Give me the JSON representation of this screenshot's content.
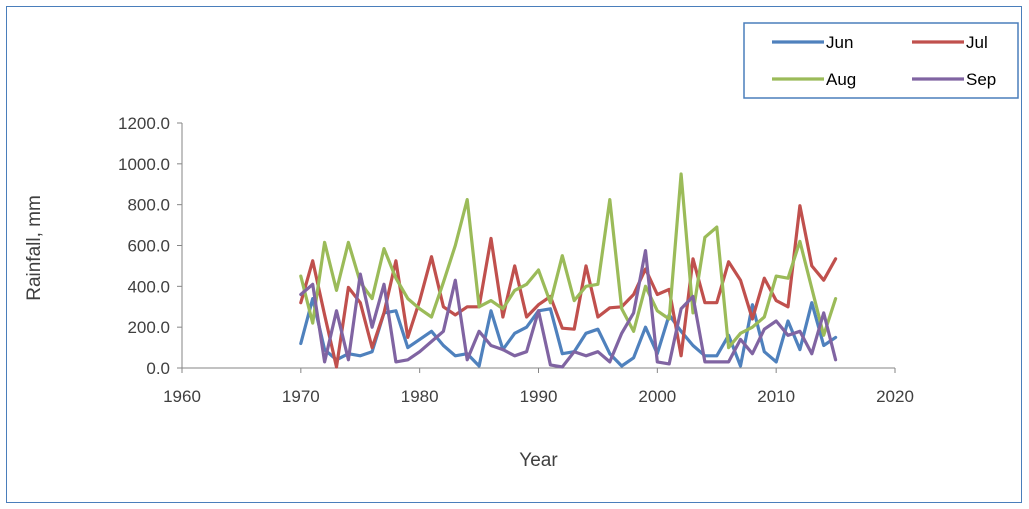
{
  "chart_data": {
    "type": "line",
    "title": "",
    "xlabel": "Year",
    "ylabel": "Rainfall, mm",
    "xlim": [
      1960,
      2020
    ],
    "ylim": [
      0,
      1200
    ],
    "x_ticks": [
      "1960",
      "1970",
      "1980",
      "1990",
      "2000",
      "2010",
      "2020"
    ],
    "y_ticks": [
      "0.0",
      "200.0",
      "400.0",
      "600.0",
      "800.0",
      "1000.0",
      "1200.0"
    ],
    "grid": false,
    "legend_position": "top-right",
    "x": [
      1970,
      1971,
      1972,
      1973,
      1974,
      1975,
      1976,
      1977,
      1978,
      1979,
      1980,
      1981,
      1982,
      1983,
      1984,
      1985,
      1986,
      1987,
      1988,
      1989,
      1990,
      1991,
      1992,
      1993,
      1994,
      1995,
      1996,
      1997,
      1998,
      1999,
      2000,
      2001,
      2002,
      2003,
      2004,
      2005,
      2006,
      2007,
      2008,
      2009,
      2010,
      2011,
      2012,
      2013,
      2014,
      2015
    ],
    "series": [
      {
        "name": "Jun",
        "color": "#4f81bd",
        "values": [
          120,
          340,
          90,
          40,
          70,
          60,
          80,
          270,
          280,
          100,
          140,
          180,
          110,
          60,
          70,
          10,
          280,
          90,
          170,
          200,
          280,
          290,
          70,
          80,
          170,
          190,
          70,
          10,
          50,
          200,
          70,
          260,
          180,
          110,
          60,
          60,
          160,
          10,
          310,
          80,
          30,
          230,
          90,
          320,
          110,
          150
        ]
      },
      {
        "name": "Jul",
        "color": "#c0504d",
        "values": [
          320,
          525,
          260,
          5,
          395,
          320,
          100,
          270,
          525,
          150,
          330,
          545,
          300,
          260,
          300,
          300,
          635,
          250,
          500,
          250,
          310,
          350,
          195,
          190,
          500,
          250,
          295,
          300,
          360,
          485,
          360,
          385,
          60,
          535,
          320,
          320,
          520,
          430,
          240,
          440,
          330,
          300,
          795,
          500,
          430,
          535
        ]
      },
      {
        "name": "Aug",
        "color": "#9bbb59",
        "values": [
          450,
          220,
          615,
          380,
          615,
          420,
          340,
          585,
          440,
          340,
          290,
          250,
          420,
          600,
          825,
          300,
          330,
          290,
          380,
          410,
          480,
          320,
          550,
          330,
          400,
          410,
          825,
          290,
          180,
          400,
          280,
          240,
          950,
          270,
          640,
          690,
          100,
          170,
          200,
          250,
          450,
          440,
          620,
          390,
          160,
          340
        ]
      },
      {
        "name": "Sep",
        "color": "#8064a2",
        "values": [
          360,
          410,
          30,
          280,
          40,
          460,
          200,
          410,
          30,
          40,
          80,
          130,
          180,
          430,
          40,
          180,
          110,
          90,
          60,
          80,
          280,
          15,
          5,
          80,
          60,
          80,
          30,
          170,
          270,
          575,
          30,
          20,
          290,
          350,
          30,
          30,
          30,
          140,
          70,
          190,
          230,
          160,
          180,
          70,
          270,
          40
        ]
      }
    ]
  }
}
